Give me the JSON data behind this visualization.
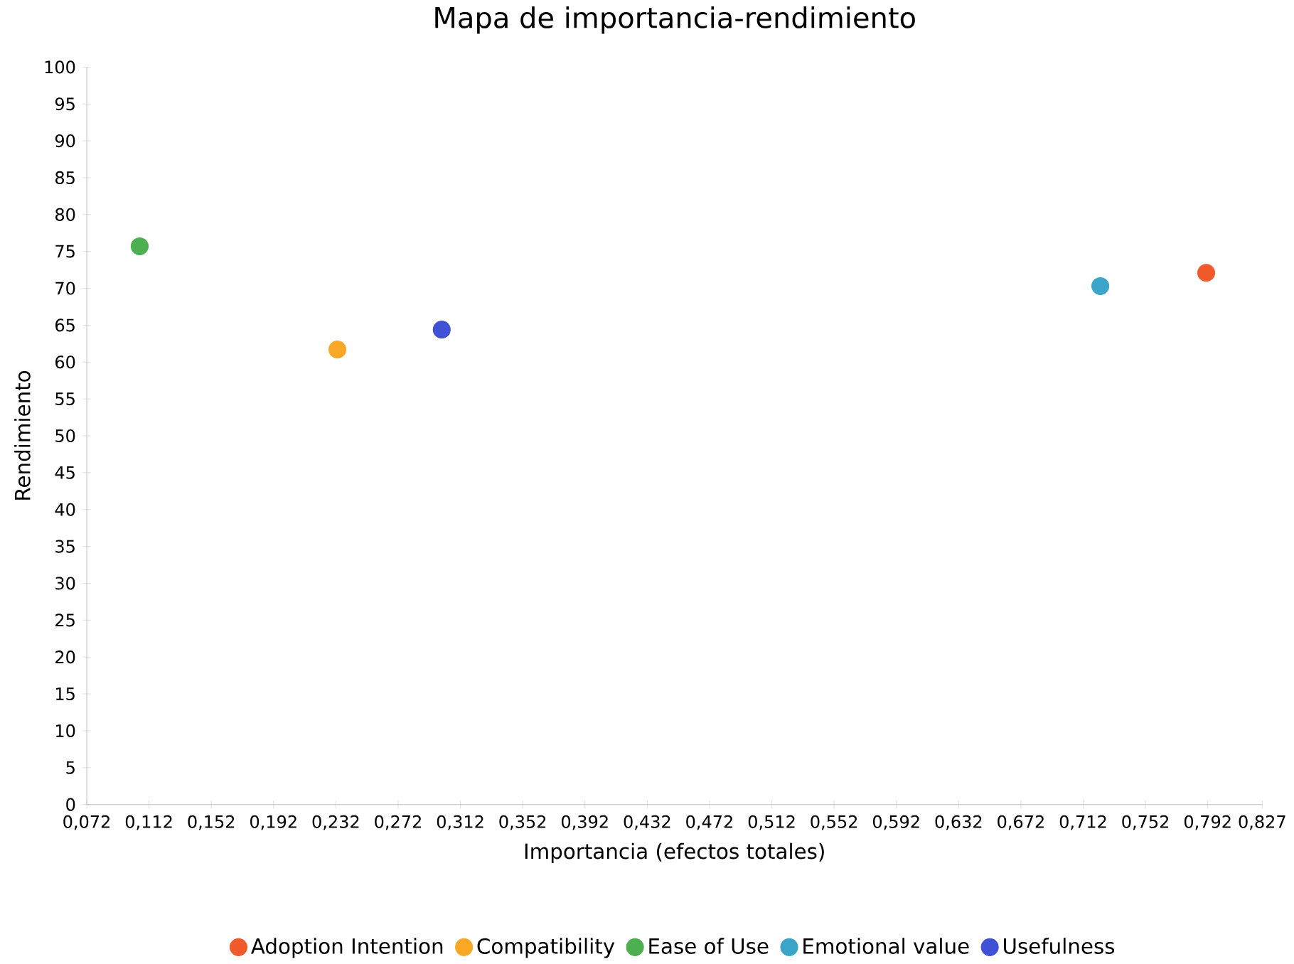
{
  "chart_data": {
    "type": "scatter",
    "title": "Mapa de importancia-rendimiento",
    "xlabel": "Importancia (efectos totales)",
    "ylabel": "Rendimiento",
    "xlim": [
      0.072,
      0.827
    ],
    "ylim": [
      0,
      100
    ],
    "xticks": [
      {
        "value": 0.072,
        "label": "0,072"
      },
      {
        "value": 0.112,
        "label": "0,112"
      },
      {
        "value": 0.152,
        "label": "0,152"
      },
      {
        "value": 0.192,
        "label": "0,192"
      },
      {
        "value": 0.232,
        "label": "0,232"
      },
      {
        "value": 0.272,
        "label": "0,272"
      },
      {
        "value": 0.312,
        "label": "0,312"
      },
      {
        "value": 0.352,
        "label": "0,352"
      },
      {
        "value": 0.392,
        "label": "0,392"
      },
      {
        "value": 0.432,
        "label": "0,432"
      },
      {
        "value": 0.472,
        "label": "0,472"
      },
      {
        "value": 0.512,
        "label": "0,512"
      },
      {
        "value": 0.552,
        "label": "0,552"
      },
      {
        "value": 0.592,
        "label": "0,592"
      },
      {
        "value": 0.632,
        "label": "0,632"
      },
      {
        "value": 0.672,
        "label": "0,672"
      },
      {
        "value": 0.712,
        "label": "0,712"
      },
      {
        "value": 0.752,
        "label": "0,752"
      },
      {
        "value": 0.792,
        "label": "0,792"
      },
      {
        "value": 0.827,
        "label": "0,827"
      }
    ],
    "yticks": [
      0,
      5,
      10,
      15,
      20,
      25,
      30,
      35,
      40,
      45,
      50,
      55,
      60,
      65,
      70,
      75,
      80,
      85,
      90,
      95,
      100
    ],
    "legend": "bottom",
    "marker": "circle",
    "series": [
      {
        "name": "Adoption Intention",
        "color": "#f15a2b",
        "x": [
          0.791
        ],
        "values": [
          72.1
        ]
      },
      {
        "name": "Compatibility",
        "color": "#f9a825",
        "x": [
          0.233
        ],
        "values": [
          61.7
        ]
      },
      {
        "name": "Ease of Use",
        "color": "#4caf50",
        "x": [
          0.106
        ],
        "values": [
          75.7
        ]
      },
      {
        "name": "Emotional  value",
        "color": "#3aa5c9",
        "x": [
          0.723
        ],
        "values": [
          70.3
        ]
      },
      {
        "name": "Usefulness",
        "color": "#3f51d4",
        "x": [
          0.3
        ],
        "values": [
          64.4
        ]
      }
    ]
  }
}
